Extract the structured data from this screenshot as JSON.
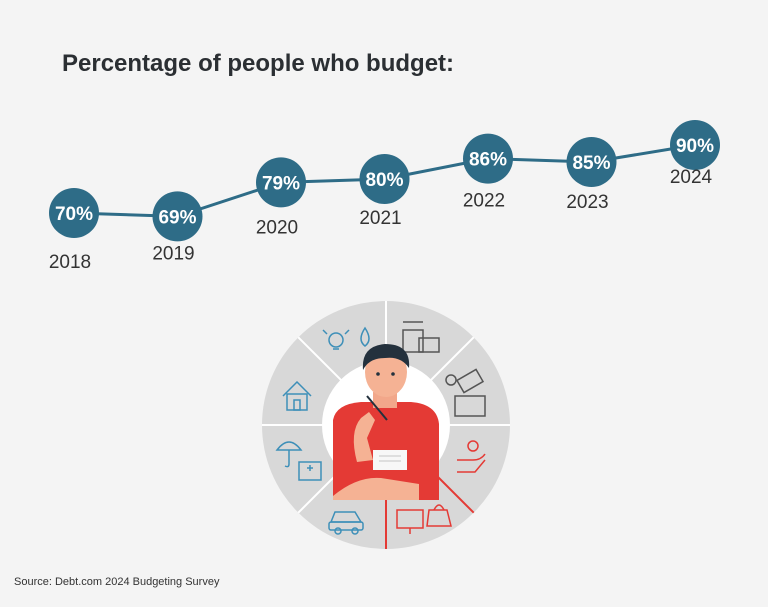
{
  "title": "Percentage of people who budget:",
  "source": "Source: Debt.com 2024 Budgeting Survey",
  "colors": {
    "line": "#2e6c87",
    "dot": "#2e6c87",
    "background": "#f4f4f4",
    "accent_red": "#e43a35"
  },
  "chart_data": {
    "type": "line",
    "title": "Percentage of people who budget:",
    "categories": [
      "2018",
      "2019",
      "2020",
      "2021",
      "2022",
      "2023",
      "2024"
    ],
    "values": [
      70,
      69,
      79,
      80,
      86,
      85,
      90
    ],
    "labels": [
      "70%",
      "69%",
      "79%",
      "80%",
      "86%",
      "85%",
      "90%"
    ],
    "unit": "%",
    "xlabel": "",
    "ylabel": "",
    "grid": false
  }
}
